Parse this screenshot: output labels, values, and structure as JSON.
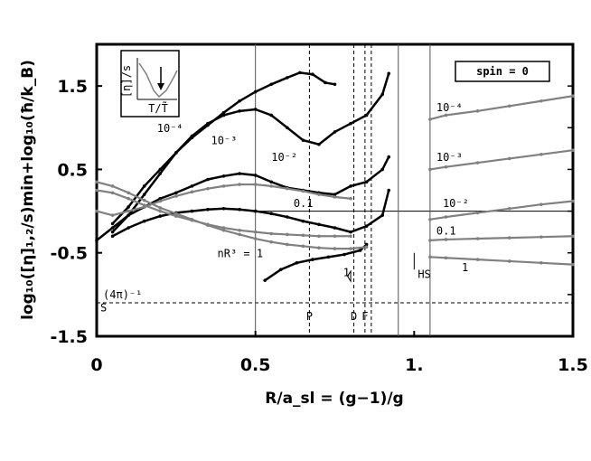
{
  "chart_data": {
    "type": "line",
    "xlabel": "R/a_sl = (g−1)/g",
    "ylabel": "log₁₀([η]₁,₂/s)min+log₁₀(ħ/k_B)",
    "xlim": [
      0,
      1.5
    ],
    "ylim": [
      -1.5,
      2.0
    ],
    "x_ticks": [
      "0",
      "0.5",
      "1.",
      "1.5"
    ],
    "y_ticks": [
      "1.5",
      "0.5",
      "-0.5",
      "-1.5"
    ],
    "legend_box": "spin = 0",
    "inset": {
      "ylabel": "[η]/s",
      "xlabel": "T/T̃"
    },
    "reference_line": {
      "label": "(4π)⁻¹",
      "y": -1.099
    },
    "zero_line": 0,
    "vertical_markers": [
      {
        "label": "P",
        "x": 0.67,
        "style": "dashed"
      },
      {
        "label": "D",
        "x": 0.81,
        "style": "dashed"
      },
      {
        "label": "F",
        "x": 0.845,
        "style": "dashed"
      },
      {
        "label": "",
        "x": 0.865,
        "style": "dashed"
      },
      {
        "label": "",
        "x": 0.5,
        "style": "solid"
      },
      {
        "label": "",
        "x": 0.95,
        "style": "solid"
      },
      {
        "label": "",
        "x": 1.05,
        "style": "solid"
      }
    ],
    "point_labels": [
      {
        "label": "S",
        "x": 0.0,
        "y": -1.2
      },
      {
        "label": "HS",
        "x": 1.0,
        "y": -0.8
      },
      {
        "label": "1",
        "x": 0.765,
        "y": -0.78
      }
    ],
    "series": [
      {
        "name": "10^-4",
        "color": "#000000",
        "segment": "left",
        "x": [
          0.05,
          0.1,
          0.15,
          0.2,
          0.25,
          0.3,
          0.35,
          0.4,
          0.45,
          0.5,
          0.55,
          0.6,
          0.64,
          0.68,
          0.72,
          0.75
        ],
        "y": [
          -0.15,
          0.05,
          0.3,
          0.5,
          0.7,
          0.88,
          1.03,
          1.18,
          1.32,
          1.43,
          1.52,
          1.6,
          1.66,
          1.64,
          1.54,
          1.52
        ]
      },
      {
        "name": "10^-3",
        "color": "#000000",
        "segment": "left",
        "x": [
          0.05,
          0.1,
          0.15,
          0.2,
          0.25,
          0.3,
          0.35,
          0.4,
          0.45,
          0.5,
          0.55,
          0.6,
          0.65,
          0.7,
          0.75,
          0.8,
          0.85,
          0.9,
          0.92
        ],
        "y": [
          -0.25,
          -0.05,
          0.2,
          0.45,
          0.7,
          0.9,
          1.05,
          1.15,
          1.2,
          1.22,
          1.15,
          1.0,
          0.85,
          0.8,
          0.95,
          1.05,
          1.15,
          1.4,
          1.65
        ]
      },
      {
        "name": "10^-2",
        "color": "#000000",
        "segment": "left",
        "x": [
          0.0,
          0.05,
          0.1,
          0.15,
          0.2,
          0.25,
          0.3,
          0.35,
          0.4,
          0.45,
          0.5,
          0.55,
          0.6,
          0.65,
          0.7,
          0.75,
          0.8,
          0.85,
          0.9,
          0.92
        ],
        "y": [
          -0.35,
          -0.2,
          -0.05,
          0.05,
          0.15,
          0.22,
          0.3,
          0.38,
          0.42,
          0.45,
          0.43,
          0.35,
          0.28,
          0.25,
          0.22,
          0.2,
          0.3,
          0.35,
          0.5,
          0.65
        ]
      },
      {
        "name": "0.1",
        "color": "#000000",
        "segment": "left",
        "x": [
          0.05,
          0.1,
          0.15,
          0.2,
          0.25,
          0.3,
          0.35,
          0.4,
          0.45,
          0.5,
          0.55,
          0.6,
          0.65,
          0.7,
          0.75,
          0.8,
          0.85,
          0.9,
          0.92
        ],
        "y": [
          -0.3,
          -0.2,
          -0.12,
          -0.06,
          -0.02,
          0.0,
          0.02,
          0.03,
          0.02,
          0.0,
          -0.03,
          -0.07,
          -0.12,
          -0.16,
          -0.2,
          -0.25,
          -0.18,
          -0.05,
          0.25
        ]
      },
      {
        "name": "nR^3 = 1",
        "color": "#000000",
        "segment": "left",
        "x": [
          0.53,
          0.58,
          0.63,
          0.68,
          0.73,
          0.78,
          0.83,
          0.85
        ],
        "y": [
          -0.83,
          -0.7,
          -0.62,
          -0.58,
          -0.55,
          -0.52,
          -0.47,
          -0.4
        ]
      },
      {
        "name": "grey 10^-2",
        "color": "#808080",
        "segment": "left",
        "x": [
          0.0,
          0.05,
          0.1,
          0.15,
          0.2,
          0.25,
          0.3,
          0.35,
          0.4,
          0.45,
          0.5,
          0.55,
          0.6,
          0.65,
          0.7,
          0.75,
          0.8
        ],
        "y": [
          0.0,
          -0.05,
          0.0,
          0.05,
          0.12,
          0.18,
          0.23,
          0.27,
          0.3,
          0.32,
          0.32,
          0.3,
          0.27,
          0.24,
          0.2,
          0.17,
          0.15
        ]
      },
      {
        "name": "grey 0.1",
        "color": "#808080",
        "segment": "left",
        "x": [
          0.0,
          0.05,
          0.1,
          0.15,
          0.2,
          0.25,
          0.3,
          0.35,
          0.4,
          0.45,
          0.5,
          0.55,
          0.6,
          0.65,
          0.7,
          0.75,
          0.8
        ],
        "y": [
          0.25,
          0.22,
          0.15,
          0.07,
          0.0,
          -0.06,
          -0.11,
          -0.16,
          -0.2,
          -0.23,
          -0.25,
          -0.27,
          -0.28,
          -0.29,
          -0.3,
          -0.3,
          -0.3
        ]
      },
      {
        "name": "grey 1",
        "color": "#808080",
        "segment": "left",
        "x": [
          0.0,
          0.05,
          0.1,
          0.15,
          0.2,
          0.25,
          0.3,
          0.35,
          0.4,
          0.45,
          0.5,
          0.55,
          0.6,
          0.65,
          0.7,
          0.75,
          0.8,
          0.85
        ],
        "y": [
          0.35,
          0.3,
          0.22,
          0.13,
          0.04,
          -0.03,
          -0.1,
          -0.17,
          -0.23,
          -0.28,
          -0.33,
          -0.37,
          -0.4,
          -0.42,
          -0.44,
          -0.45,
          -0.45,
          -0.43
        ]
      },
      {
        "name": "right 10^-4",
        "color": "#808080",
        "segment": "right",
        "x": [
          1.05,
          1.1,
          1.2,
          1.3,
          1.4,
          1.5
        ],
        "y": [
          1.1,
          1.15,
          1.2,
          1.26,
          1.32,
          1.38
        ]
      },
      {
        "name": "right 10^-3",
        "color": "#808080",
        "segment": "right",
        "x": [
          1.05,
          1.1,
          1.2,
          1.3,
          1.4,
          1.5
        ],
        "y": [
          0.5,
          0.53,
          0.58,
          0.63,
          0.68,
          0.73
        ]
      },
      {
        "name": "right 10^-2",
        "color": "#808080",
        "segment": "right",
        "x": [
          1.05,
          1.1,
          1.2,
          1.3,
          1.4,
          1.5
        ],
        "y": [
          -0.1,
          -0.07,
          -0.02,
          0.03,
          0.08,
          0.12
        ]
      },
      {
        "name": "right 0.1",
        "color": "#808080",
        "segment": "right",
        "x": [
          1.05,
          1.1,
          1.2,
          1.3,
          1.4,
          1.5
        ],
        "y": [
          -0.35,
          -0.34,
          -0.33,
          -0.32,
          -0.31,
          -0.3
        ]
      },
      {
        "name": "right 1",
        "color": "#808080",
        "segment": "right",
        "x": [
          1.05,
          1.1,
          1.2,
          1.3,
          1.4,
          1.5
        ],
        "y": [
          -0.55,
          -0.56,
          -0.58,
          -0.6,
          -0.62,
          -0.64
        ]
      }
    ],
    "curve_labels": [
      {
        "text": "10⁻⁴",
        "x": 0.19,
        "y": 0.95
      },
      {
        "text": "10⁻³",
        "x": 0.36,
        "y": 0.8
      },
      {
        "text": "10⁻²",
        "x": 0.55,
        "y": 0.6
      },
      {
        "text": "0.1",
        "x": 0.62,
        "y": 0.05
      },
      {
        "text": "nR³ = 1",
        "x": 0.38,
        "y": -0.55
      },
      {
        "text": "10⁻⁴",
        "x": 1.07,
        "y": 1.2
      },
      {
        "text": "10⁻³",
        "x": 1.07,
        "y": 0.6
      },
      {
        "text": "10⁻²",
        "x": 1.09,
        "y": 0.05
      },
      {
        "text": "0.1",
        "x": 1.07,
        "y": -0.28
      },
      {
        "text": "1",
        "x": 1.15,
        "y": -0.72
      }
    ]
  }
}
